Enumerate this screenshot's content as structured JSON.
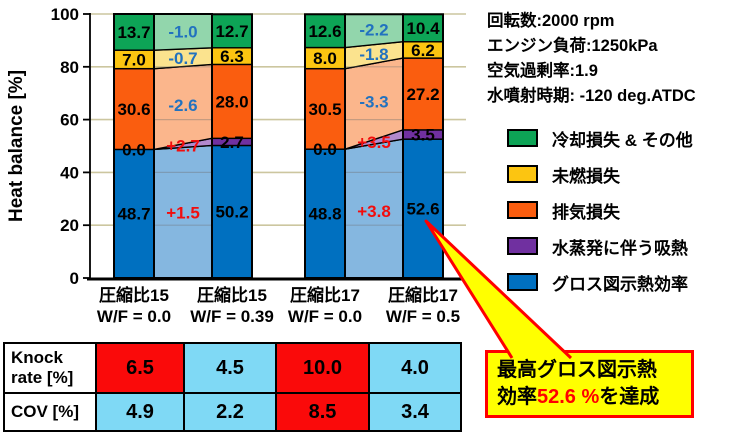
{
  "conditions": {
    "lines": [
      "回転数:2000 rpm",
      "エンジン負荷:1250kPa",
      "空気過剰率:1.9",
      "水噴射時期: -120 deg.ATDC"
    ]
  },
  "legend": {
    "items": [
      {
        "label": "冷却損失 & その他",
        "color": "#0DA456"
      },
      {
        "label": "未燃損失",
        "color": "#FCC511"
      },
      {
        "label": "排気損失",
        "color": "#FA5D0F"
      },
      {
        "label": "水蒸発に伴う吸熱",
        "color": "#7030A0"
      },
      {
        "label": "グロス図示熱効率",
        "color": "#0070C0"
      }
    ]
  },
  "table": {
    "colors": {
      "red": "#FA0A0A",
      "blue": "#7FD9F5"
    },
    "rows": [
      {
        "label": "Knock rate [%]",
        "cells": [
          {
            "value": "6.5",
            "bg": "red"
          },
          {
            "value": "4.5",
            "bg": "blue"
          },
          {
            "value": "10.0",
            "bg": "red"
          },
          {
            "value": "4.0",
            "bg": "blue"
          }
        ]
      },
      {
        "label": "COV [%]",
        "cells": [
          {
            "value": "4.9",
            "bg": "blue"
          },
          {
            "value": "2.2",
            "bg": "blue"
          },
          {
            "value": "8.5",
            "bg": "red"
          },
          {
            "value": "3.4",
            "bg": "blue"
          }
        ]
      }
    ]
  },
  "callout": {
    "line1": "最高グロス図示熱",
    "line2_prefix": "効率",
    "highlight": "52.6 %",
    "line2_suffix": "を達成",
    "bg_color": "#FFFF00",
    "border_color": "#FF0000",
    "highlight_color": "#FF0000"
  },
  "chart_data": {
    "type": "bar",
    "stacked": true,
    "title": "",
    "xlabel": "",
    "ylabel": "Heat balance [%]",
    "ylim": [
      0,
      100
    ],
    "yticks": [
      0,
      20,
      40,
      60,
      80,
      100
    ],
    "grid": true,
    "grid_color": "#CCC69F",
    "legend_position": "right",
    "categories": [
      {
        "line1": "圧縮比15",
        "line2": "W/F = 0.0"
      },
      {
        "line1": "圧縮比15",
        "line2": "W/F = 0.39"
      },
      {
        "line1": "圧縮比17",
        "line2": "W/F = 0.0"
      },
      {
        "line1": "圧縮比17",
        "line2": "W/F = 0.5"
      }
    ],
    "series": [
      {
        "name": "グロス図示熱効率",
        "color": "#0070C0",
        "light_color": "#85B7E0",
        "values": [
          48.7,
          50.2,
          48.8,
          52.6
        ]
      },
      {
        "name": "水蒸発に伴う吸熱",
        "color": "#7030A0",
        "light_color": "#B289CE",
        "values": [
          0.0,
          2.7,
          0.0,
          3.5
        ]
      },
      {
        "name": "排気損失",
        "color": "#FA5D0F",
        "light_color": "#FBB68C",
        "values": [
          30.6,
          28.0,
          30.5,
          27.2
        ]
      },
      {
        "name": "未燃損失",
        "color": "#FCC511",
        "light_color": "#FBE38E",
        "values": [
          7.0,
          6.3,
          8.0,
          6.2
        ]
      },
      {
        "name": "冷却損失 & その他",
        "color": "#0DA456",
        "light_color": "#92D6AC",
        "values": [
          13.7,
          12.7,
          12.6,
          10.4
        ]
      }
    ],
    "difference_columns": [
      {
        "between": [
          0,
          1
        ],
        "labels": [
          "+1.5",
          "+2.7",
          "-2.6",
          "-0.7",
          "-1.0"
        ]
      },
      {
        "between": [
          2,
          3
        ],
        "labels": [
          "+3.8",
          "+3.5",
          "-3.3",
          "-1.8",
          "-2.2"
        ]
      }
    ],
    "diff_positive_color": "#F20D0D",
    "diff_negative_color": "#2272BF"
  }
}
